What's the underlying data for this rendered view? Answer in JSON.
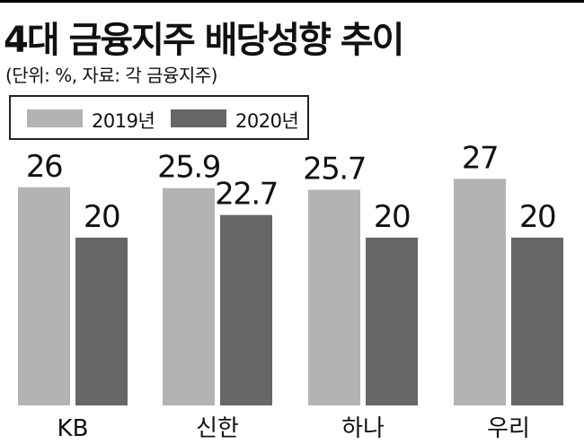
{
  "title": "4대 금융지주 배당성향 추이",
  "subtitle": "(단위: %, 자료: 각 금융지주)",
  "colors": {
    "2019": "#b3b3b3",
    "2020": "#666666"
  },
  "chart_data": {
    "type": "bar",
    "title": "4대 금융지주 배당성향 추이",
    "subtitle": "(단위: %, 자료: 각 금융지주)",
    "categories": [
      "KB",
      "신한",
      "하나",
      "우리"
    ],
    "series": [
      {
        "name": "2019년",
        "values": [
          26,
          25.9,
          25.7,
          27
        ],
        "labels": [
          "26",
          "25.9",
          "25.7",
          "27"
        ]
      },
      {
        "name": "2020년",
        "values": [
          20,
          22.7,
          20,
          20
        ],
        "labels": [
          "20",
          "22.7",
          "20",
          "20"
        ]
      }
    ],
    "xlabel": "",
    "ylabel": "",
    "ylim": [
      0,
      32.5
    ],
    "grid": false,
    "legend": "top-left"
  }
}
